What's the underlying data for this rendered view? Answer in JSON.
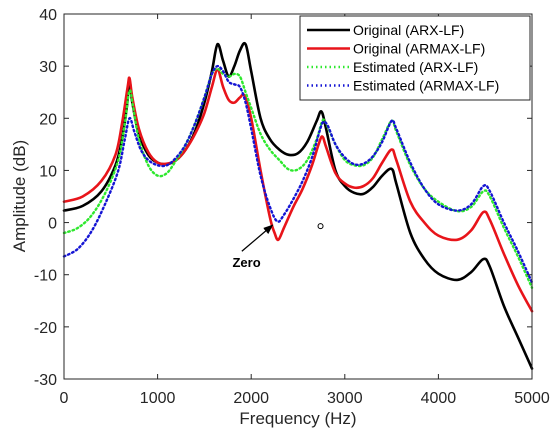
{
  "chart_data": {
    "type": "line",
    "title": "",
    "xlabel": "Frequency (Hz)",
    "ylabel": "Amplitude (dB)",
    "xlim": [
      0,
      5000
    ],
    "ylim": [
      -30,
      40
    ],
    "xticks": [
      0,
      1000,
      2000,
      3000,
      4000,
      5000
    ],
    "yticks": [
      -30,
      -20,
      -10,
      0,
      10,
      20,
      30,
      40
    ],
    "grid": false,
    "legend_position": "top-right",
    "series": [
      {
        "name": "Original (ARX-LF)",
        "color": "#000000",
        "style": "solid",
        "points": [
          [
            0,
            2.3
          ],
          [
            200,
            3.2
          ],
          [
            400,
            6
          ],
          [
            550,
            11
          ],
          [
            620,
            16
          ],
          [
            670,
            22
          ],
          [
            700,
            27
          ],
          [
            730,
            23
          ],
          [
            800,
            17
          ],
          [
            900,
            13
          ],
          [
            1000,
            11.5
          ],
          [
            1100,
            11.2
          ],
          [
            1200,
            12
          ],
          [
            1300,
            14
          ],
          [
            1400,
            17.5
          ],
          [
            1500,
            23
          ],
          [
            1580,
            29
          ],
          [
            1640,
            34.2
          ],
          [
            1700,
            31
          ],
          [
            1760,
            28
          ],
          [
            1820,
            30
          ],
          [
            1880,
            33
          ],
          [
            1940,
            34.2
          ],
          [
            2000,
            29
          ],
          [
            2100,
            20
          ],
          [
            2200,
            16
          ],
          [
            2300,
            14
          ],
          [
            2400,
            13
          ],
          [
            2500,
            13.3
          ],
          [
            2600,
            15.5
          ],
          [
            2700,
            19.5
          ],
          [
            2750,
            21.3
          ],
          [
            2800,
            18
          ],
          [
            2900,
            10
          ],
          [
            3000,
            7
          ],
          [
            3100,
            5.7
          ],
          [
            3200,
            5.5
          ],
          [
            3300,
            6.8
          ],
          [
            3400,
            9
          ],
          [
            3500,
            10.3
          ],
          [
            3550,
            7.5
          ],
          [
            3700,
            -2
          ],
          [
            3850,
            -7
          ],
          [
            4000,
            -9.8
          ],
          [
            4200,
            -11
          ],
          [
            4350,
            -9.5
          ],
          [
            4480,
            -7
          ],
          [
            4550,
            -8.5
          ],
          [
            4700,
            -16
          ],
          [
            4850,
            -22
          ],
          [
            5000,
            -28
          ]
        ]
      },
      {
        "name": "Original (ARMAX-LF)",
        "color": "#e8141a",
        "style": "solid",
        "points": [
          [
            0,
            4
          ],
          [
            200,
            5
          ],
          [
            400,
            8
          ],
          [
            550,
            13
          ],
          [
            620,
            19
          ],
          [
            680,
            26
          ],
          [
            700,
            27.7
          ],
          [
            730,
            24
          ],
          [
            800,
            18
          ],
          [
            900,
            13.5
          ],
          [
            1000,
            11.5
          ],
          [
            1100,
            11.3
          ],
          [
            1200,
            12
          ],
          [
            1300,
            14
          ],
          [
            1400,
            17
          ],
          [
            1500,
            21
          ],
          [
            1580,
            26
          ],
          [
            1640,
            29.3
          ],
          [
            1700,
            26
          ],
          [
            1760,
            23.5
          ],
          [
            1820,
            23
          ],
          [
            1880,
            24
          ],
          [
            1930,
            24.3
          ],
          [
            2000,
            20
          ],
          [
            2100,
            10
          ],
          [
            2200,
            1
          ],
          [
            2250,
            -2
          ],
          [
            2290,
            -3.3
          ],
          [
            2350,
            -1
          ],
          [
            2450,
            3
          ],
          [
            2550,
            6.5
          ],
          [
            2650,
            11
          ],
          [
            2720,
            15
          ],
          [
            2760,
            16.5
          ],
          [
            2800,
            14.5
          ],
          [
            2900,
            9.5
          ],
          [
            3000,
            7.5
          ],
          [
            3100,
            6.7
          ],
          [
            3200,
            7
          ],
          [
            3300,
            8.5
          ],
          [
            3400,
            11.5
          ],
          [
            3500,
            14
          ],
          [
            3550,
            12
          ],
          [
            3700,
            4
          ],
          [
            3850,
            0
          ],
          [
            4000,
            -2.5
          ],
          [
            4200,
            -3.3
          ],
          [
            4350,
            -1.5
          ],
          [
            4480,
            2
          ],
          [
            4550,
            0.5
          ],
          [
            4700,
            -6
          ],
          [
            4850,
            -12
          ],
          [
            5000,
            -17
          ]
        ]
      },
      {
        "name": "Estimated (ARX-LF)",
        "color": "#2ee82e",
        "style": "dotted",
        "points": [
          [
            0,
            -2
          ],
          [
            150,
            -1
          ],
          [
            300,
            1.5
          ],
          [
            450,
            6
          ],
          [
            580,
            12
          ],
          [
            650,
            19
          ],
          [
            700,
            25.3
          ],
          [
            740,
            22
          ],
          [
            800,
            16
          ],
          [
            900,
            11
          ],
          [
            1000,
            9
          ],
          [
            1100,
            9.5
          ],
          [
            1200,
            12
          ],
          [
            1300,
            15
          ],
          [
            1400,
            19
          ],
          [
            1500,
            24
          ],
          [
            1580,
            28.5
          ],
          [
            1640,
            29.5
          ],
          [
            1700,
            28.5
          ],
          [
            1760,
            28
          ],
          [
            1820,
            28.5
          ],
          [
            1880,
            28
          ],
          [
            1940,
            25
          ],
          [
            2000,
            22
          ],
          [
            2100,
            17
          ],
          [
            2200,
            14
          ],
          [
            2300,
            12
          ],
          [
            2400,
            10.2
          ],
          [
            2500,
            10.2
          ],
          [
            2600,
            12
          ],
          [
            2700,
            16
          ],
          [
            2760,
            19.5
          ],
          [
            2800,
            19
          ],
          [
            2900,
            15
          ],
          [
            3000,
            12
          ],
          [
            3100,
            11
          ],
          [
            3200,
            11
          ],
          [
            3300,
            12.5
          ],
          [
            3400,
            16
          ],
          [
            3500,
            19.5
          ],
          [
            3550,
            17.5
          ],
          [
            3700,
            11
          ],
          [
            3850,
            6.5
          ],
          [
            4000,
            4
          ],
          [
            4200,
            2.2
          ],
          [
            4350,
            3
          ],
          [
            4480,
            6
          ],
          [
            4550,
            5
          ],
          [
            4700,
            -1
          ],
          [
            4850,
            -6.5
          ],
          [
            5000,
            -12.5
          ]
        ]
      },
      {
        "name": "Estimated (ARMAX-LF)",
        "color": "#1414d4",
        "style": "dotted",
        "points": [
          [
            0,
            -6.5
          ],
          [
            150,
            -5
          ],
          [
            300,
            -1.5
          ],
          [
            450,
            4
          ],
          [
            580,
            10
          ],
          [
            650,
            16
          ],
          [
            700,
            20
          ],
          [
            750,
            17.5
          ],
          [
            820,
            14
          ],
          [
            900,
            12
          ],
          [
            1000,
            11
          ],
          [
            1100,
            11
          ],
          [
            1200,
            12.5
          ],
          [
            1300,
            15
          ],
          [
            1400,
            19
          ],
          [
            1500,
            24
          ],
          [
            1580,
            28.5
          ],
          [
            1640,
            30
          ],
          [
            1700,
            29
          ],
          [
            1760,
            27
          ],
          [
            1820,
            26.5
          ],
          [
            1880,
            26
          ],
          [
            1940,
            23
          ],
          [
            2000,
            18
          ],
          [
            2100,
            9
          ],
          [
            2200,
            3
          ],
          [
            2280,
            0.2
          ],
          [
            2350,
            1.5
          ],
          [
            2450,
            4.5
          ],
          [
            2550,
            8
          ],
          [
            2650,
            12.5
          ],
          [
            2730,
            17.5
          ],
          [
            2770,
            19.3
          ],
          [
            2820,
            18.5
          ],
          [
            2900,
            15
          ],
          [
            3000,
            12.5
          ],
          [
            3100,
            11.2
          ],
          [
            3200,
            11.3
          ],
          [
            3300,
            12.7
          ],
          [
            3400,
            15.5
          ],
          [
            3500,
            19.5
          ],
          [
            3550,
            18
          ],
          [
            3700,
            11.5
          ],
          [
            3850,
            6.5
          ],
          [
            4000,
            3.5
          ],
          [
            4200,
            2.3
          ],
          [
            4350,
            3.5
          ],
          [
            4480,
            7
          ],
          [
            4550,
            6
          ],
          [
            4700,
            0
          ],
          [
            4850,
            -5.5
          ],
          [
            5000,
            -11.5
          ]
        ]
      }
    ],
    "annotations": [
      {
        "text": "Zero",
        "text_at": [
          1800,
          -8.5
        ],
        "arrow_from": [
          1900,
          -5.5
        ],
        "arrow_to": [
          2260,
          -0.5
        ]
      }
    ]
  }
}
